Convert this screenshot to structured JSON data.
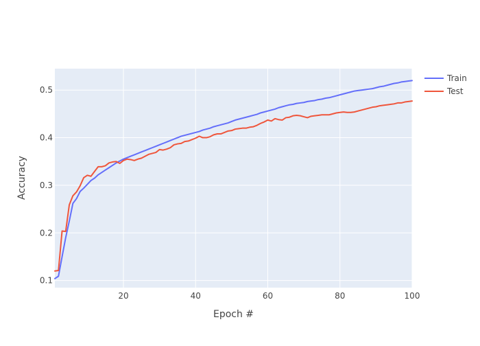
{
  "chart_data": {
    "type": "line",
    "title": "",
    "xlabel": "Epoch #",
    "ylabel": "Accuracy",
    "xlim": [
      1,
      100
    ],
    "ylim": [
      0.085,
      0.545
    ],
    "x_ticks": [
      20,
      40,
      60,
      80,
      100
    ],
    "y_ticks": [
      0.1,
      0.2,
      0.3,
      0.4,
      0.5
    ],
    "grid": true,
    "legend_position": "top-right",
    "plot_background": "#e5ecf6",
    "grid_color": "#ffffff",
    "series": [
      {
        "name": "Train",
        "color": "#636efa",
        "x": [
          1,
          2,
          3,
          4,
          5,
          6,
          7,
          8,
          9,
          10,
          11,
          12,
          13,
          14,
          15,
          16,
          17,
          18,
          19,
          20,
          21,
          22,
          23,
          24,
          25,
          26,
          27,
          28,
          29,
          30,
          31,
          32,
          33,
          34,
          35,
          36,
          37,
          38,
          39,
          40,
          41,
          42,
          43,
          44,
          45,
          46,
          47,
          48,
          49,
          50,
          51,
          52,
          53,
          54,
          55,
          56,
          57,
          58,
          59,
          60,
          61,
          62,
          63,
          64,
          65,
          66,
          67,
          68,
          69,
          70,
          71,
          72,
          73,
          74,
          75,
          76,
          77,
          78,
          79,
          80,
          81,
          82,
          83,
          84,
          85,
          86,
          87,
          88,
          89,
          90,
          91,
          92,
          93,
          94,
          95,
          96,
          97,
          98,
          99,
          100
        ],
        "values": [
          0.104,
          0.109,
          0.15,
          0.19,
          0.225,
          0.262,
          0.272,
          0.287,
          0.294,
          0.302,
          0.31,
          0.315,
          0.322,
          0.327,
          0.332,
          0.337,
          0.342,
          0.347,
          0.351,
          0.355,
          0.358,
          0.361,
          0.364,
          0.367,
          0.37,
          0.373,
          0.376,
          0.379,
          0.382,
          0.385,
          0.388,
          0.391,
          0.394,
          0.397,
          0.4,
          0.403,
          0.405,
          0.407,
          0.409,
          0.411,
          0.413,
          0.416,
          0.418,
          0.42,
          0.423,
          0.425,
          0.427,
          0.429,
          0.431,
          0.434,
          0.437,
          0.439,
          0.441,
          0.443,
          0.445,
          0.447,
          0.449,
          0.452,
          0.454,
          0.456,
          0.458,
          0.46,
          0.463,
          0.465,
          0.467,
          0.469,
          0.47,
          0.472,
          0.473,
          0.474,
          0.476,
          0.477,
          0.478,
          0.48,
          0.481,
          0.483,
          0.484,
          0.486,
          0.488,
          0.49,
          0.492,
          0.494,
          0.496,
          0.498,
          0.499,
          0.5,
          0.501,
          0.502,
          0.503,
          0.505,
          0.507,
          0.508,
          0.51,
          0.512,
          0.514,
          0.515,
          0.517,
          0.518,
          0.519,
          0.52
        ]
      },
      {
        "name": "Test",
        "color": "#ef553b",
        "x": [
          1,
          2,
          3,
          4,
          5,
          6,
          7,
          8,
          9,
          10,
          11,
          12,
          13,
          14,
          15,
          16,
          17,
          18,
          19,
          20,
          21,
          22,
          23,
          24,
          25,
          26,
          27,
          28,
          29,
          30,
          31,
          32,
          33,
          34,
          35,
          36,
          37,
          38,
          39,
          40,
          41,
          42,
          43,
          44,
          45,
          46,
          47,
          48,
          49,
          50,
          51,
          52,
          53,
          54,
          55,
          56,
          57,
          58,
          59,
          60,
          61,
          62,
          63,
          64,
          65,
          66,
          67,
          68,
          69,
          70,
          71,
          72,
          73,
          74,
          75,
          76,
          77,
          78,
          79,
          80,
          81,
          82,
          83,
          84,
          85,
          86,
          87,
          88,
          89,
          90,
          91,
          92,
          93,
          94,
          95,
          96,
          97,
          98,
          99,
          100
        ],
        "values": [
          0.12,
          0.121,
          0.204,
          0.203,
          0.259,
          0.278,
          0.286,
          0.299,
          0.316,
          0.321,
          0.319,
          0.329,
          0.339,
          0.339,
          0.341,
          0.347,
          0.349,
          0.35,
          0.346,
          0.352,
          0.355,
          0.354,
          0.352,
          0.355,
          0.357,
          0.361,
          0.365,
          0.367,
          0.369,
          0.375,
          0.374,
          0.376,
          0.379,
          0.385,
          0.387,
          0.388,
          0.392,
          0.393,
          0.396,
          0.399,
          0.403,
          0.4,
          0.4,
          0.402,
          0.406,
          0.408,
          0.408,
          0.411,
          0.414,
          0.415,
          0.418,
          0.419,
          0.42,
          0.42,
          0.422,
          0.423,
          0.426,
          0.43,
          0.433,
          0.437,
          0.435,
          0.44,
          0.438,
          0.437,
          0.442,
          0.443,
          0.446,
          0.447,
          0.446,
          0.444,
          0.442,
          0.445,
          0.446,
          0.447,
          0.448,
          0.448,
          0.448,
          0.45,
          0.452,
          0.453,
          0.454,
          0.453,
          0.453,
          0.454,
          0.456,
          0.458,
          0.46,
          0.462,
          0.464,
          0.465,
          0.467,
          0.468,
          0.469,
          0.47,
          0.471,
          0.473,
          0.473,
          0.475,
          0.476,
          0.477
        ]
      }
    ]
  }
}
